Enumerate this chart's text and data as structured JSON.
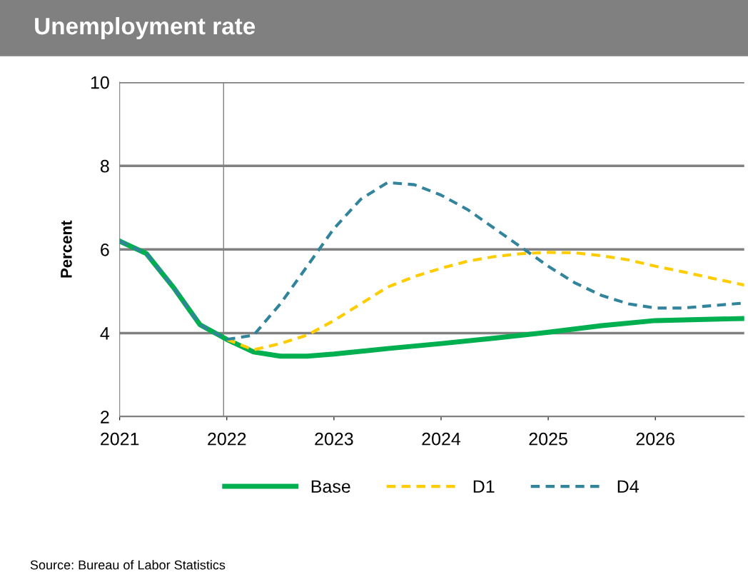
{
  "chart_data": {
    "type": "line",
    "title": "Unemployment rate",
    "ylabel": "Percent",
    "x": [
      2021,
      2021.25,
      2021.5,
      2021.75,
      2022,
      2022.25,
      2022.5,
      2022.75,
      2023,
      2023.5,
      2024,
      2024.5,
      2025,
      2025.5,
      2026,
      2026.83
    ],
    "series": [
      {
        "name": "Base",
        "color": "#00b050",
        "line_style": "solid",
        "values": [
          6.2,
          5.9,
          5.1,
          4.2,
          3.85,
          3.55,
          3.45,
          3.45,
          3.5,
          3.63,
          3.75,
          3.88,
          4.02,
          4.18,
          4.3,
          4.35
        ]
      },
      {
        "name": "D1",
        "color": "#ffcc00",
        "line_style": "dashed",
        "x": [
          2022,
          2022.25,
          2022.5,
          2022.75,
          2023,
          2023.25,
          2023.5,
          2023.75,
          2024,
          2024.25,
          2024.5,
          2024.75,
          2025,
          2025.25,
          2025.5,
          2025.75,
          2026,
          2026.25,
          2026.5,
          2026.83
        ],
        "values": [
          3.85,
          3.6,
          3.75,
          3.95,
          4.3,
          4.7,
          5.1,
          5.35,
          5.55,
          5.72,
          5.83,
          5.9,
          5.93,
          5.92,
          5.85,
          5.75,
          5.6,
          5.47,
          5.33,
          5.15
        ]
      },
      {
        "name": "D4",
        "color": "#31849b",
        "line_style": "dashed",
        "x": [
          2021,
          2021.25,
          2021.5,
          2021.75,
          2022,
          2022.25,
          2022.5,
          2022.75,
          2023,
          2023.25,
          2023.5,
          2023.75,
          2024,
          2024.25,
          2024.5,
          2024.75,
          2025,
          2025.25,
          2025.5,
          2025.75,
          2026,
          2026.25,
          2026.5,
          2026.83
        ],
        "values": [
          6.2,
          5.9,
          5.1,
          4.2,
          3.85,
          3.95,
          4.7,
          5.6,
          6.5,
          7.2,
          7.6,
          7.55,
          7.3,
          6.95,
          6.5,
          6.05,
          5.6,
          5.2,
          4.9,
          4.7,
          4.6,
          4.6,
          4.65,
          4.72
        ]
      }
    ],
    "xlim": [
      2021,
      2026.83
    ],
    "xticks": [
      2021,
      2022,
      2023,
      2024,
      2025,
      2026
    ],
    "ylim": [
      2,
      10
    ],
    "yticks": [
      2,
      4,
      6,
      8,
      10
    ],
    "ref_lines": [
      {
        "axis": "x",
        "value": 2021.97,
        "color": "#808080"
      }
    ],
    "grid": "y",
    "legend": "bottom",
    "annotations": [
      "Source: Bureau of Labor Statistics"
    ]
  }
}
